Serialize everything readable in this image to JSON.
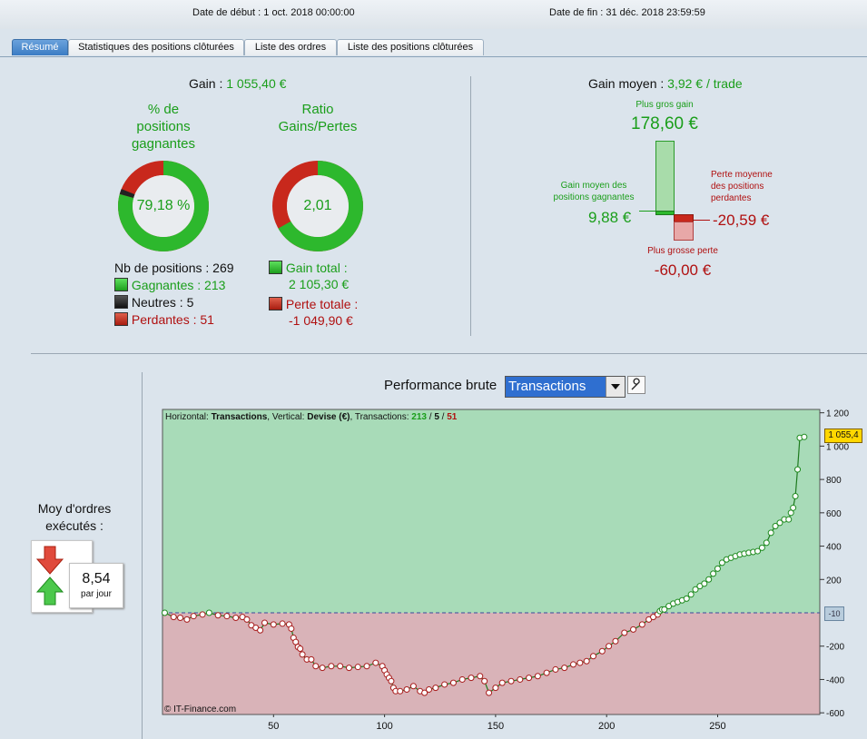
{
  "header": {
    "start_date": "Date de début :  1 oct. 2018 00:00:00",
    "end_date": "Date de fin :  31 déc. 2018 23:59:59"
  },
  "tabs": [
    "Résumé",
    "Statistiques des positions clôturées",
    "Liste des ordres",
    "Liste des positions clôturées"
  ],
  "summary": {
    "gain_label": "Gain :",
    "gain_value": "1 055,40 €",
    "pct_title": "% de\npositions\ngagnantes",
    "pct_value": "79,18 %",
    "ratio_title": "Ratio\nGains/Pertes",
    "ratio_value": "2,01",
    "nb_positions": "Nb de positions : 269",
    "gagnantes": "Gagnantes : 213",
    "neutres": "Neutres : 5",
    "perdantes": "Perdantes : 51",
    "gain_total_label": "Gain total :",
    "gain_total_value": "2 105,30 €",
    "perte_totale_label": "Perte totale :",
    "perte_totale_value": "-1 049,90 €",
    "win_fraction": 0.7918,
    "neutral_fraction": 0.0186,
    "ratio_gain_fraction": 0.667
  },
  "gain_moyen": {
    "label": "Gain moyen :",
    "value": "3,92 € / trade",
    "plus_gros_gain_label": "Plus gros gain",
    "plus_gros_gain_value": "178,60 €",
    "gain_moyen_gagnantes_label": "Gain moyen des\npositions gagnantes",
    "gain_moyen_gagnantes_value": "9,88 €",
    "perte_moyenne_label": "Perte moyenne\ndes positions\nperdantes",
    "perte_moyenne_value": "-20,59 €",
    "plus_grosse_perte_label": "Plus grosse perte",
    "plus_grosse_perte_value": "-60,00 €"
  },
  "orders": {
    "title": "Moy d'ordres\nexécutés :",
    "value": "8,54",
    "unit": "par jour"
  },
  "chart_header": {
    "label": "Performance brute",
    "select_value": "Transactions"
  },
  "colors": {
    "gain": "#2db82d",
    "loss": "#c8281c",
    "neutral": "#222222",
    "chart_pos_bg": "#a8dbb8",
    "chart_neg_bg": "#d9b3b8",
    "line": "#1e7a1e"
  },
  "chart_data": {
    "type": "line",
    "info": {
      "h_label": "Horizontal:",
      "h_value": "Transactions",
      "v_label": "Vertical:",
      "v_value": "Devise (€)",
      "t_label": "Transactions:",
      "t_win": "213",
      "t_neutral": "5",
      "t_loss": "51"
    },
    "copyright": "© IT-Finance.com",
    "current_value_label": "1 055,4",
    "zero_marker_label": "-10",
    "xlim": [
      0,
      296
    ],
    "ylim": [
      -610,
      1220
    ],
    "x_ticks": [
      50,
      100,
      150,
      200,
      250
    ],
    "y_ticks": [
      -600,
      -400,
      -200,
      200,
      400,
      600,
      800,
      1000,
      1200
    ],
    "y_tick_labels": [
      "-600",
      "-400",
      "-200",
      "200",
      "400",
      "600",
      "800",
      "1 000",
      "1 200"
    ],
    "series": [
      {
        "values": [
          [
            1,
            0
          ],
          [
            5,
            -25
          ],
          [
            8,
            -30
          ],
          [
            11,
            -40
          ],
          [
            14,
            -20
          ],
          [
            18,
            -10
          ],
          [
            21,
            0
          ],
          [
            25,
            -15
          ],
          [
            29,
            -20
          ],
          [
            33,
            -30
          ],
          [
            36,
            -25
          ],
          [
            38,
            -40
          ],
          [
            40,
            -75
          ],
          [
            42,
            -90
          ],
          [
            44,
            -105
          ],
          [
            46,
            -60
          ],
          [
            50,
            -70
          ],
          [
            54,
            -65
          ],
          [
            57,
            -70
          ],
          [
            58,
            -95
          ],
          [
            59,
            -150
          ],
          [
            60,
            -175
          ],
          [
            61,
            -205
          ],
          [
            62,
            -215
          ],
          [
            63,
            -250
          ],
          [
            65,
            -280
          ],
          [
            67,
            -280
          ],
          [
            69,
            -320
          ],
          [
            72,
            -330
          ],
          [
            76,
            -320
          ],
          [
            80,
            -320
          ],
          [
            84,
            -330
          ],
          [
            88,
            -325
          ],
          [
            92,
            -320
          ],
          [
            96,
            -300
          ],
          [
            99,
            -320
          ],
          [
            100,
            -345
          ],
          [
            101,
            -370
          ],
          [
            102,
            -390
          ],
          [
            103,
            -410
          ],
          [
            104,
            -450
          ],
          [
            105,
            -470
          ],
          [
            107,
            -470
          ],
          [
            110,
            -460
          ],
          [
            113,
            -440
          ],
          [
            116,
            -470
          ],
          [
            118,
            -480
          ],
          [
            120,
            -460
          ],
          [
            123,
            -450
          ],
          [
            127,
            -430
          ],
          [
            131,
            -420
          ],
          [
            135,
            -400
          ],
          [
            139,
            -390
          ],
          [
            143,
            -380
          ],
          [
            145,
            -410
          ],
          [
            147,
            -480
          ],
          [
            150,
            -450
          ],
          [
            153,
            -420
          ],
          [
            157,
            -410
          ],
          [
            161,
            -400
          ],
          [
            165,
            -390
          ],
          [
            169,
            -380
          ],
          [
            173,
            -360
          ],
          [
            177,
            -340
          ],
          [
            181,
            -330
          ],
          [
            185,
            -310
          ],
          [
            188,
            -300
          ],
          [
            191,
            -290
          ],
          [
            194,
            -260
          ],
          [
            198,
            -230
          ],
          [
            201,
            -200
          ],
          [
            204,
            -170
          ],
          [
            208,
            -120
          ],
          [
            212,
            -100
          ],
          [
            216,
            -70
          ],
          [
            219,
            -40
          ],
          [
            221,
            -25
          ],
          [
            223,
            -10
          ],
          [
            224,
            10
          ],
          [
            225,
            20
          ],
          [
            226,
            20
          ],
          [
            228,
            40
          ],
          [
            230,
            55
          ],
          [
            232,
            65
          ],
          [
            234,
            75
          ],
          [
            236,
            85
          ],
          [
            238,
            110
          ],
          [
            240,
            140
          ],
          [
            242,
            160
          ],
          [
            244,
            175
          ],
          [
            246,
            200
          ],
          [
            248,
            235
          ],
          [
            250,
            265
          ],
          [
            252,
            300
          ],
          [
            254,
            320
          ],
          [
            256,
            330
          ],
          [
            258,
            340
          ],
          [
            260,
            350
          ],
          [
            262,
            355
          ],
          [
            264,
            360
          ],
          [
            266,
            365
          ],
          [
            268,
            370
          ],
          [
            270,
            390
          ],
          [
            272,
            420
          ],
          [
            274,
            480
          ],
          [
            276,
            520
          ],
          [
            278,
            540
          ],
          [
            280,
            560
          ],
          [
            282,
            560
          ],
          [
            283,
            600
          ],
          [
            284,
            630
          ],
          [
            285,
            700
          ],
          [
            286,
            860
          ],
          [
            287,
            1050
          ],
          [
            289,
            1055
          ]
        ]
      }
    ]
  }
}
